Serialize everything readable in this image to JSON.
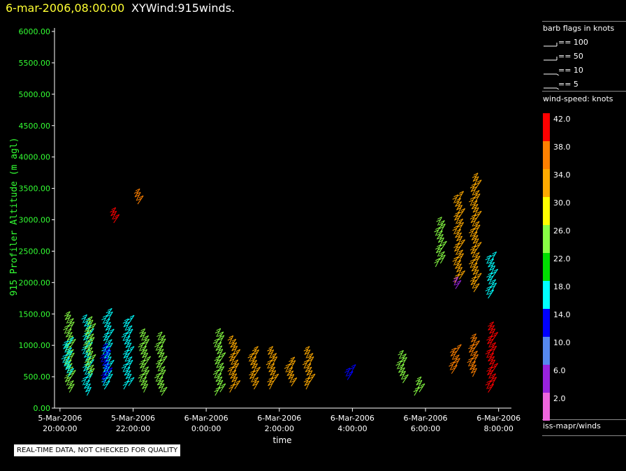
{
  "header": {
    "date": "6-mar-2006,08:00:00",
    "title": "XYWind:915winds."
  },
  "footer": {
    "notice": "REAL-TIME DATA, NOT CHECKED FOR QUALITY"
  },
  "legend": {
    "barb_title": "barb flags in knots",
    "barb_entries": [
      "== 100",
      "== 50",
      "== 10",
      "== 5"
    ],
    "speed_title": "wind-speed: knots",
    "source": "iss-mapr/winds",
    "colorbar": [
      {
        "label": "42.0",
        "color": "#ff0000"
      },
      {
        "label": "38.0",
        "color": "#ff8000"
      },
      {
        "label": "34.0",
        "color": "#ffaa00"
      },
      {
        "label": "30.0",
        "color": "#ffff00"
      },
      {
        "label": "26.0",
        "color": "#88ff44"
      },
      {
        "label": "22.0",
        "color": "#00dd00"
      },
      {
        "label": "18.0",
        "color": "#00ffff"
      },
      {
        "label": "14.0",
        "color": "#0000ff"
      },
      {
        "label": "10.0",
        "color": "#5588ee"
      },
      {
        "label": "6.0",
        "color": "#9922dd"
      },
      {
        "label": "2.0",
        "color": "#ee66dd"
      }
    ]
  },
  "chart_data": {
    "type": "scatter",
    "xlabel": "time",
    "ylabel": "915 Profiler Altitude (m agl)",
    "ylim": [
      0,
      6000
    ],
    "y_ticks": [
      "0.00",
      "500.00",
      "1000.00",
      "1500.00",
      "2000.00",
      "2500.00",
      "3000.00",
      "3500.00",
      "4000.00",
      "4500.00",
      "5000.00",
      "5500.00",
      "6000.00"
    ],
    "x_ticks": [
      {
        "line1": "5-Mar-2006",
        "line2": "20:00:00"
      },
      {
        "line1": "5-Mar-2006",
        "line2": "22:00:00"
      },
      {
        "line1": "6-Mar-2006",
        "line2": "0:00:00"
      },
      {
        "line1": "6-Mar-2006",
        "line2": "2:00:00"
      },
      {
        "line1": "6-Mar-2006",
        "line2": "4:00:00"
      },
      {
        "line1": "6-Mar-2006",
        "line2": "6:00:00"
      },
      {
        "line1": "6-Mar-2006",
        "line2": "8:00:00"
      }
    ],
    "xlim_hours": [
      -4.15,
      8.35
    ],
    "profiles": [
      {
        "t": -3.8,
        "ymin": 250,
        "ymax": 1450,
        "color": "#88ff44"
      },
      {
        "t": -3.85,
        "ymin": 500,
        "ymax": 1000,
        "color": "#00ffff"
      },
      {
        "t": -3.3,
        "ymin": 200,
        "ymax": 1400,
        "color": "#00ffff"
      },
      {
        "t": -3.25,
        "ymin": 500,
        "ymax": 1350,
        "color": "#88ff44"
      },
      {
        "t": -2.75,
        "ymin": 300,
        "ymax": 1500,
        "color": "#00ffff"
      },
      {
        "t": -2.8,
        "ymin": 400,
        "ymax": 900,
        "color": "#0000ff"
      },
      {
        "t": -2.2,
        "ymin": 300,
        "ymax": 1350,
        "color": "#00ffff"
      },
      {
        "t": -1.75,
        "ymin": 250,
        "ymax": 1150,
        "color": "#88ff44"
      },
      {
        "t": -1.3,
        "ymin": 200,
        "ymax": 1100,
        "color": "#88ff44"
      },
      {
        "t": 0.3,
        "ymin": 200,
        "ymax": 1150,
        "color": "#88ff44"
      },
      {
        "t": 0.7,
        "ymin": 250,
        "ymax": 1050,
        "color": "#ffaa00"
      },
      {
        "t": 1.25,
        "ymin": 300,
        "ymax": 900,
        "color": "#ffaa00"
      },
      {
        "t": 1.75,
        "ymin": 300,
        "ymax": 850,
        "color": "#ffaa00"
      },
      {
        "t": 2.25,
        "ymin": 350,
        "ymax": 700,
        "color": "#ffaa00"
      },
      {
        "t": 2.75,
        "ymin": 300,
        "ymax": 850,
        "color": "#ffaa00"
      },
      {
        "t": 5.3,
        "ymin": 400,
        "ymax": 800,
        "color": "#88ff44"
      },
      {
        "t": 5.75,
        "ymin": 200,
        "ymax": 400,
        "color": "#88ff44"
      },
      {
        "t": 6.75,
        "ymin": 550,
        "ymax": 900,
        "color": "#ff8000"
      },
      {
        "t": 7.25,
        "ymin": 500,
        "ymax": 1050,
        "color": "#ff8000"
      },
      {
        "t": 7.75,
        "ymin": 250,
        "ymax": 1250,
        "color": "#ff0000"
      },
      {
        "t": 6.35,
        "ymin": 2250,
        "ymax": 2950,
        "color": "#88ff44"
      },
      {
        "t": 6.85,
        "ymin": 2000,
        "ymax": 3350,
        "color": "#ffaa00"
      },
      {
        "t": 7.3,
        "ymin": 1850,
        "ymax": 3650,
        "color": "#ffaa00"
      },
      {
        "t": 7.75,
        "ymin": 1750,
        "ymax": 2400,
        "color": "#00ffff"
      }
    ],
    "upper_cluster": [
      {
        "t": -2.55,
        "ymin": 2950,
        "ymax": 3100,
        "color": "#ff0000"
      },
      {
        "t": -1.95,
        "ymin": 3250,
        "ymax": 3400,
        "color": "#ff8000"
      }
    ],
    "isolated": [
      {
        "t": 3.9,
        "ymin": 450,
        "ymax": 600,
        "color": "#0000ff"
      },
      {
        "t": 6.8,
        "ymin": 1900,
        "ymax": 2000,
        "color": "#9922dd"
      }
    ]
  }
}
